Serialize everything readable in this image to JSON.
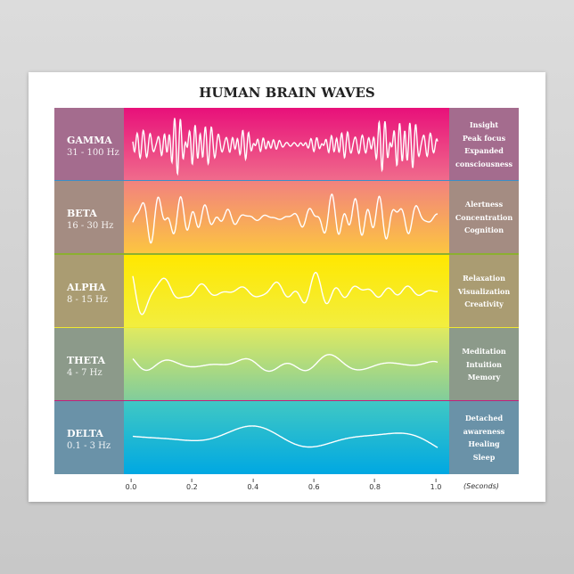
{
  "title": "HUMAN BRAIN WAVES",
  "waves": [
    {
      "name": "GAMMA",
      "range": "31 - 100 Hz",
      "effects": [
        "Insight",
        "Peak focus",
        "Expanded",
        "consciousness"
      ],
      "gradient": [
        "#e8107a",
        "#f06c8c"
      ],
      "label_color": "#a46c8e",
      "separator": "#3a8fc8"
    },
    {
      "name": "BETA",
      "range": "16 - 30 Hz",
      "effects": [
        "Alertness",
        "Concentration",
        "Cognition"
      ],
      "gradient": [
        "#f2827e",
        "#fcc640"
      ],
      "label_color": "#a48c82",
      "separator": "#8cb030"
    },
    {
      "name": "ALPHA",
      "range": "8 - 15 Hz",
      "effects": [
        "Relaxation",
        "Visualization",
        "Creativity"
      ],
      "gradient": [
        "#ffe800",
        "#f2ee40"
      ],
      "label_color": "#aa9c72",
      "separator": "#f0e830"
    },
    {
      "name": "THETA",
      "range": "4 - 7 Hz",
      "effects": [
        "Meditation",
        "Intuition",
        "Memory"
      ],
      "gradient": [
        "#e0ea60",
        "#80cc9c"
      ],
      "label_color": "#8c9a8a",
      "separator": "#c0207a"
    },
    {
      "name": "DELTA",
      "range": "0.1 - 3 Hz",
      "effects": [
        "Detached",
        "awareness",
        "Healing",
        "Sleep"
      ],
      "gradient": [
        "#40c8c4",
        "#00a8e2"
      ],
      "label_color": "#6a92a8",
      "separator": ""
    }
  ],
  "x_axis": {
    "ticks": [
      "0.0",
      "0.2",
      "0.4",
      "0.6",
      "0.8",
      "1.0"
    ],
    "unit": "(Seconds)"
  }
}
